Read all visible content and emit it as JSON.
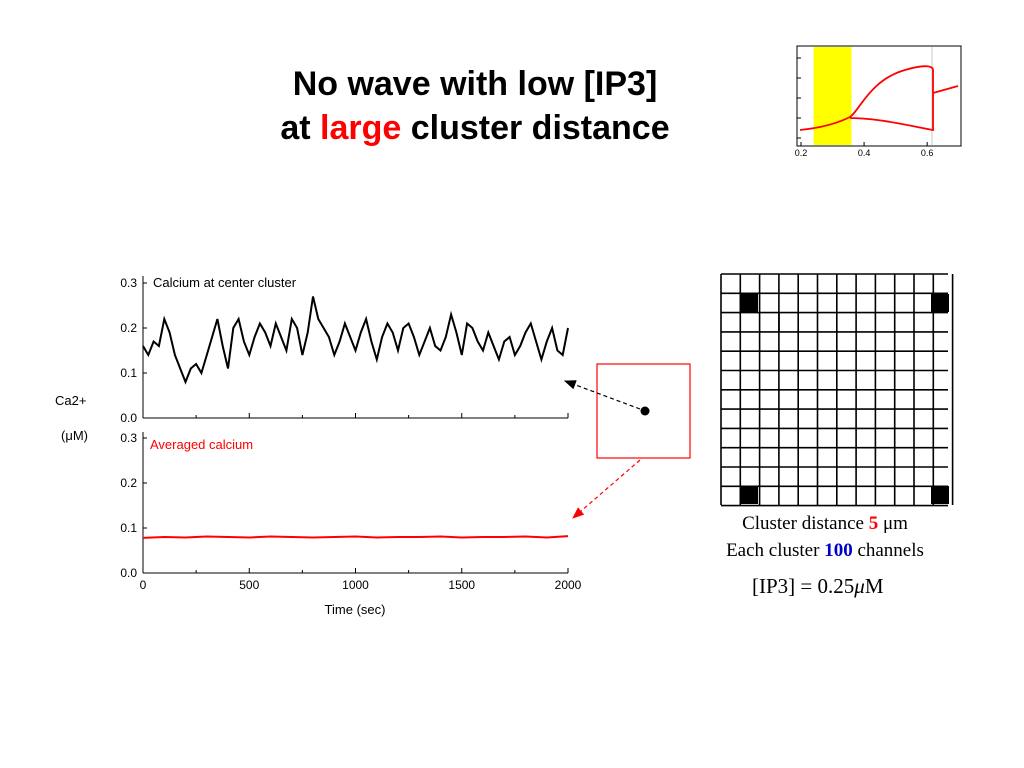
{
  "title": {
    "line1": "No wave with low [IP3]",
    "line2_prefix": "at ",
    "line2_highlight": "large",
    "line2_suffix": " cluster distance"
  },
  "ylabel": {
    "line1": "Ca2+",
    "line2": "(μM)"
  },
  "xlabel": "Time  (sec)",
  "caption": {
    "line1_prefix": "Cluster distance ",
    "line1_value": "5",
    "line1_unit": " μm",
    "line2_prefix": "Each cluster ",
    "line2_value": "100",
    "line2_suffix": " channels"
  },
  "formula": {
    "lhs": "[IP3]",
    "eq": " = ",
    "value": "0.25",
    "mu": "μ",
    "unit": "M"
  },
  "colors": {
    "red": "#ff0000",
    "blue": "#0000cc",
    "yellow": "#ffff00",
    "black": "#000000"
  },
  "chart_data": [
    {
      "type": "line",
      "title": "Calcium at center cluster",
      "xlim": [
        0,
        2000
      ],
      "ylim": [
        0,
        0.3
      ],
      "yticks": [
        "0.0",
        "0.1",
        "0.2",
        "0.3"
      ],
      "series": [
        {
          "name": "Calcium at center cluster",
          "color": "#000000",
          "x": [
            0,
            25,
            50,
            75,
            100,
            125,
            150,
            175,
            200,
            225,
            250,
            275,
            300,
            325,
            350,
            375,
            400,
            425,
            450,
            475,
            500,
            525,
            550,
            575,
            600,
            625,
            650,
            675,
            700,
            725,
            750,
            775,
            800,
            825,
            850,
            875,
            900,
            925,
            950,
            975,
            1000,
            1025,
            1050,
            1075,
            1100,
            1125,
            1150,
            1175,
            1200,
            1225,
            1250,
            1275,
            1300,
            1325,
            1350,
            1375,
            1400,
            1425,
            1450,
            1475,
            1500,
            1525,
            1550,
            1575,
            1600,
            1625,
            1650,
            1675,
            1700,
            1725,
            1750,
            1775,
            1800,
            1825,
            1850,
            1875,
            1900,
            1925,
            1950,
            1975,
            2000
          ],
          "y": [
            0.16,
            0.14,
            0.17,
            0.16,
            0.22,
            0.19,
            0.14,
            0.11,
            0.08,
            0.11,
            0.12,
            0.1,
            0.14,
            0.18,
            0.22,
            0.16,
            0.11,
            0.2,
            0.22,
            0.17,
            0.14,
            0.18,
            0.21,
            0.19,
            0.16,
            0.21,
            0.18,
            0.15,
            0.22,
            0.2,
            0.14,
            0.19,
            0.27,
            0.22,
            0.2,
            0.18,
            0.14,
            0.17,
            0.21,
            0.18,
            0.15,
            0.19,
            0.22,
            0.17,
            0.13,
            0.18,
            0.21,
            0.19,
            0.15,
            0.2,
            0.21,
            0.18,
            0.14,
            0.17,
            0.2,
            0.16,
            0.15,
            0.18,
            0.23,
            0.19,
            0.14,
            0.21,
            0.2,
            0.17,
            0.15,
            0.19,
            0.16,
            0.13,
            0.17,
            0.18,
            0.14,
            0.16,
            0.19,
            0.21,
            0.17,
            0.13,
            0.17,
            0.2,
            0.15,
            0.14,
            0.2
          ]
        }
      ]
    },
    {
      "type": "line",
      "title": "Averaged calcium",
      "xlabel": "Time  (sec)",
      "xlim": [
        0,
        2000
      ],
      "ylim": [
        0,
        0.3
      ],
      "xticks": [
        "0",
        "500",
        "1000",
        "1500",
        "2000"
      ],
      "yticks": [
        "0.0",
        "0.1",
        "0.2",
        "0.3"
      ],
      "series": [
        {
          "name": "Averaged calcium",
          "color": "#ff0000",
          "x": [
            0,
            100,
            200,
            300,
            400,
            500,
            600,
            700,
            800,
            900,
            1000,
            1100,
            1200,
            1300,
            1400,
            1500,
            1600,
            1700,
            1800,
            1900,
            2000
          ],
          "y": [
            0.078,
            0.08,
            0.079,
            0.081,
            0.08,
            0.079,
            0.081,
            0.08,
            0.079,
            0.08,
            0.081,
            0.079,
            0.08,
            0.08,
            0.081,
            0.079,
            0.08,
            0.08,
            0.081,
            0.079,
            0.082
          ]
        }
      ]
    },
    {
      "type": "line",
      "title": "",
      "xticks": [
        "0.2",
        "0.4",
        "0.6"
      ],
      "xlim": [
        0.2,
        0.72
      ],
      "highlight_band": [
        0.24,
        0.36
      ],
      "series": [
        {
          "name": "",
          "color": "#ff0000",
          "x": [
            0.2,
            0.25,
            0.3,
            0.34,
            0.36
          ],
          "y": [
            0.1,
            0.12,
            0.14,
            0.16,
            0.18
          ]
        }
      ]
    }
  ]
}
